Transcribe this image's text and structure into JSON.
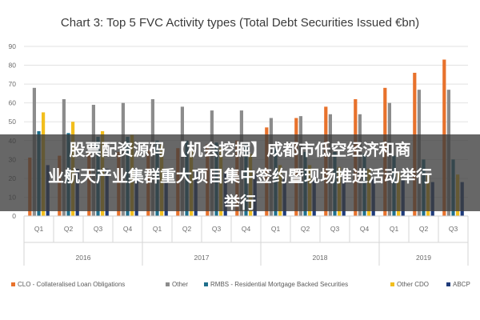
{
  "overlay_text": {
    "line1": "股票配资源码 【机会挖掘】成都市低空经济和商",
    "line2": "业航天产业集群重大项目集中签约暨现场推进活动举行",
    "line3": "举行"
  },
  "chart_data": {
    "type": "bar",
    "title": "Chart 3: Top 5 FVC Activity types (Total Debt Securities Issued €bn)",
    "ylim": [
      0,
      90
    ],
    "yticks": [
      0,
      10,
      20,
      30,
      40,
      50,
      60,
      70,
      80,
      90
    ],
    "grid": true,
    "legend_position": "bottom",
    "categories": [
      "Q1",
      "Q2",
      "Q3",
      "Q4",
      "Q1",
      "Q2",
      "Q3",
      "Q4",
      "Q1",
      "Q2",
      "Q3",
      "Q4",
      "Q1",
      "Q2",
      "Q3"
    ],
    "years": [
      {
        "label": "2016",
        "start": 0,
        "end": 3
      },
      {
        "label": "2017",
        "start": 4,
        "end": 7
      },
      {
        "label": "2018",
        "start": 8,
        "end": 11
      },
      {
        "label": "2019",
        "start": 12,
        "end": 14
      }
    ],
    "series": [
      {
        "name": "CLO - Collateralised Loan Obligations",
        "color": "#e8722c",
        "values": [
          31,
          32,
          34,
          34,
          35,
          36,
          38,
          40,
          47,
          52,
          58,
          62,
          68,
          76,
          83
        ]
      },
      {
        "name": "Other",
        "color": "#8c8c8c",
        "values": [
          68,
          62,
          59,
          60,
          62,
          58,
          56,
          56,
          52,
          53,
          54,
          54,
          60,
          67,
          67
        ]
      },
      {
        "name": "RMBS - Residential Mortgage Backed Securities",
        "color": "#1f6f8b",
        "values": [
          45,
          44,
          42,
          42,
          40,
          40,
          39,
          38,
          36,
          34,
          34,
          33,
          32,
          30,
          30
        ]
      },
      {
        "name": "Other CDO",
        "color": "#f2be1d",
        "values": [
          55,
          50,
          45,
          43,
          38,
          36,
          36,
          33,
          27,
          27,
          26,
          25,
          23,
          22,
          22
        ]
      },
      {
        "name": "ABCP",
        "color": "#1f3b7a",
        "values": [
          27,
          25,
          25,
          25,
          25,
          24,
          23,
          22,
          20,
          20,
          20,
          20,
          19,
          18,
          18
        ]
      }
    ]
  }
}
